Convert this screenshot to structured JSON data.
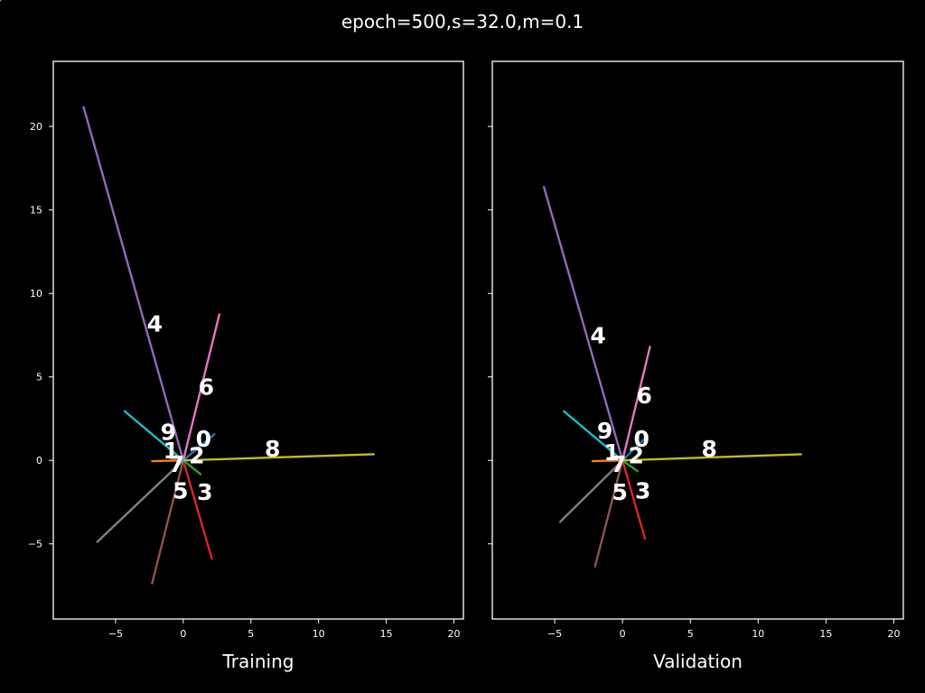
{
  "figure": {
    "suptitle": "epoch=500,s=32.0,m=0.1",
    "background": "#000000",
    "foreground": "#ffffff"
  },
  "chart_data": [
    {
      "type": "scatter",
      "xlabel": "Training",
      "xlim": [
        -9.6,
        20.7
      ],
      "ylim": [
        -9.5,
        23.9
      ],
      "xticks": [
        -5,
        0,
        5,
        10,
        15,
        20
      ],
      "yticks": [
        -5,
        0,
        5,
        10,
        15,
        20
      ],
      "grid": false,
      "series": [
        {
          "name": "0",
          "color": "#1f77b4",
          "label_pos": [
            1.5,
            1.2
          ],
          "spoke": {
            "end": [
              2.5,
              1.7
            ],
            "spread": 0.25,
            "dotted": false
          }
        },
        {
          "name": "1",
          "color": "#ff7f0e",
          "label_pos": [
            -0.9,
            0.5
          ],
          "spoke": {
            "end": [
              -2.5,
              -0.05
            ],
            "spread": 0.15,
            "dotted": false
          }
        },
        {
          "name": "2",
          "color": "#2ca02c",
          "label_pos": [
            1.0,
            0.2
          ],
          "spoke": {
            "end": [
              1.4,
              -0.9
            ],
            "spread": 0.2,
            "dotted": false
          }
        },
        {
          "name": "3",
          "color": "#d62728",
          "label_pos": [
            1.6,
            -2.0
          ],
          "spoke": {
            "end": [
              2.3,
              -6.4
            ],
            "spread": 0.3,
            "dotted": false
          }
        },
        {
          "name": "4",
          "color": "#9467bd",
          "label_pos": [
            -2.1,
            8.1
          ],
          "spoke": {
            "end": [
              -8.0,
              23.0
            ],
            "spread": 0.6,
            "dotted": true
          }
        },
        {
          "name": "5",
          "color": "#8c564b",
          "label_pos": [
            -0.2,
            -1.9
          ],
          "spoke": {
            "end": [
              -2.5,
              -8.0
            ],
            "spread": 0.35,
            "dotted": true
          }
        },
        {
          "name": "6",
          "color": "#e377c2",
          "label_pos": [
            1.7,
            4.3
          ],
          "spoke": {
            "end": [
              2.9,
              9.5
            ],
            "spread": 0.35,
            "dotted": false
          }
        },
        {
          "name": "7",
          "color": "#7f7f7f",
          "label_pos": [
            -0.5,
            -0.3
          ],
          "spoke": {
            "end": [
              -6.9,
              -5.3
            ],
            "spread": 0.3,
            "dotted": true
          }
        },
        {
          "name": "8",
          "color": "#bcbd22",
          "label_pos": [
            6.6,
            0.6
          ],
          "spoke": {
            "end": [
              15.3,
              0.4
            ],
            "spread": 0.3,
            "dotted": false
          }
        },
        {
          "name": "9",
          "color": "#17becf",
          "label_pos": [
            -1.1,
            1.6
          ],
          "spoke": {
            "end": [
              -4.7,
              3.2
            ],
            "spread": 0.25,
            "dotted": false
          }
        }
      ]
    },
    {
      "type": "scatter",
      "xlabel": "Validation",
      "xlim": [
        -9.6,
        20.7
      ],
      "ylim": [
        -9.5,
        23.9
      ],
      "xticks": [
        -5,
        0,
        5,
        10,
        15,
        20
      ],
      "yticks": [
        -5,
        0,
        5,
        10,
        15,
        20
      ],
      "grid": false,
      "series": [
        {
          "name": "0",
          "color": "#1f77b4",
          "label_pos": [
            1.4,
            1.2
          ],
          "spoke": {
            "end": [
              2.0,
              1.6
            ],
            "spread": 0.25,
            "dotted": false
          }
        },
        {
          "name": "1",
          "color": "#ff7f0e",
          "label_pos": [
            -0.8,
            0.4
          ],
          "spoke": {
            "end": [
              -2.4,
              -0.05
            ],
            "spread": 0.15,
            "dotted": false
          }
        },
        {
          "name": "2",
          "color": "#2ca02c",
          "label_pos": [
            1.0,
            0.2
          ],
          "spoke": {
            "end": [
              1.2,
              -0.7
            ],
            "spread": 0.2,
            "dotted": false
          }
        },
        {
          "name": "3",
          "color": "#d62728",
          "label_pos": [
            1.5,
            -1.9
          ],
          "spoke": {
            "end": [
              1.8,
              -5.1
            ],
            "spread": 0.3,
            "dotted": false
          }
        },
        {
          "name": "4",
          "color": "#9467bd",
          "label_pos": [
            -1.8,
            7.4
          ],
          "spoke": {
            "end": [
              -6.3,
              17.8
            ],
            "spread": 0.5,
            "dotted": true
          }
        },
        {
          "name": "5",
          "color": "#8c564b",
          "label_pos": [
            -0.2,
            -2.0
          ],
          "spoke": {
            "end": [
              -2.2,
              -6.9
            ],
            "spread": 0.3,
            "dotted": true
          }
        },
        {
          "name": "6",
          "color": "#e377c2",
          "label_pos": [
            1.6,
            3.8
          ],
          "spoke": {
            "end": [
              2.2,
              7.4
            ],
            "spread": 0.3,
            "dotted": false
          }
        },
        {
          "name": "7",
          "color": "#7f7f7f",
          "label_pos": [
            -0.3,
            -0.3
          ],
          "spoke": {
            "end": [
              -5.0,
              -4.0
            ],
            "spread": 0.3,
            "dotted": true
          }
        },
        {
          "name": "8",
          "color": "#bcbd22",
          "label_pos": [
            6.4,
            0.6
          ],
          "spoke": {
            "end": [
              14.3,
              0.4
            ],
            "spread": 0.3,
            "dotted": false
          }
        },
        {
          "name": "9",
          "color": "#17becf",
          "label_pos": [
            -1.3,
            1.7
          ],
          "spoke": {
            "end": [
              -4.7,
              3.2
            ],
            "spread": 0.25,
            "dotted": false
          }
        }
      ]
    }
  ]
}
